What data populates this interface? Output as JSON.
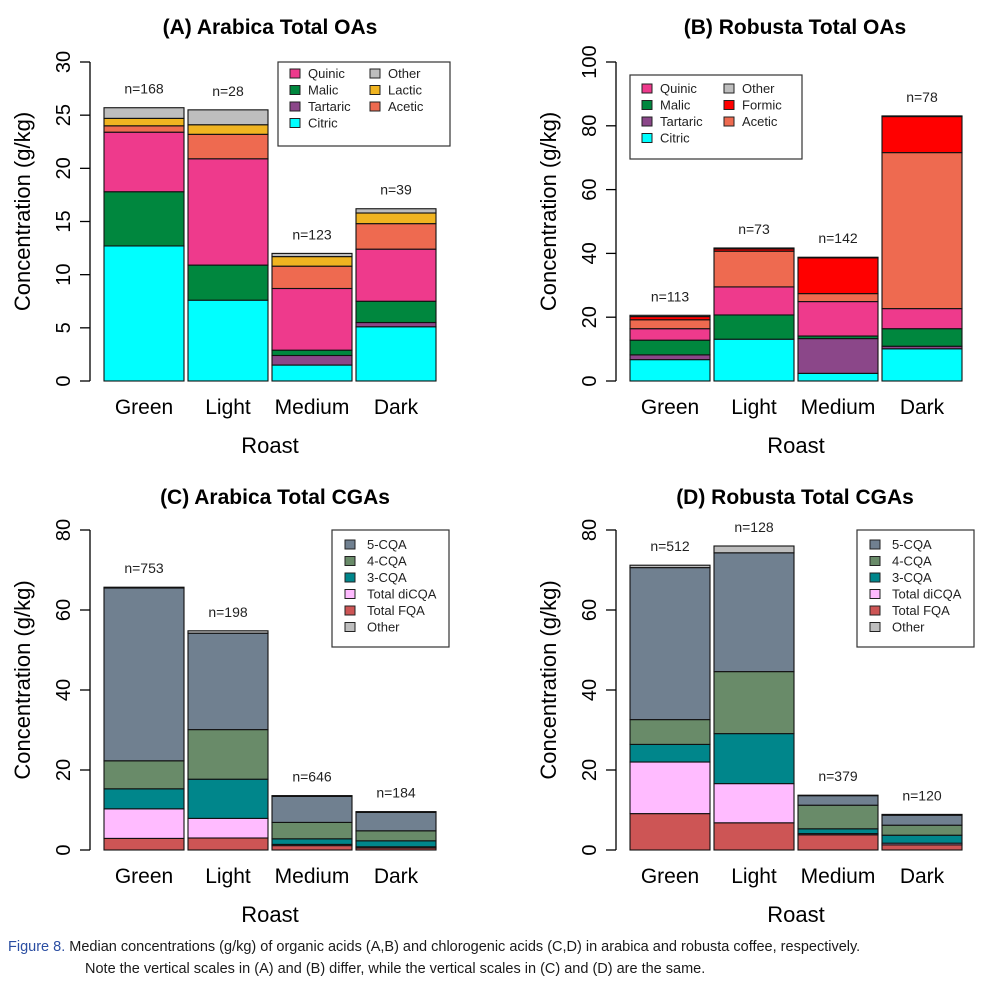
{
  "caption": {
    "label": "Figure 8.",
    "line1": "Median concentrations (g/kg) of organic acids (A,B) and chlorogenic acids (C,D) in arabica and robusta coffee, respectively.",
    "line2": "Note the vertical scales in (A) and (B) differ, while the vertical scales in (C) and (D) are the same."
  },
  "chart_data": [
    {
      "type": "bar",
      "stacked": true,
      "title": "(A) Arabica Total OAs",
      "xlabel": "Roast",
      "ylabel": "Concentration (g/kg)",
      "ylim": [
        0,
        30
      ],
      "yticks": [
        0,
        5,
        10,
        15,
        20,
        25,
        30
      ],
      "categories": [
        "Green",
        "Light",
        "Medium",
        "Dark"
      ],
      "annotations": [
        "n=168",
        "n=28",
        "n=123",
        "n=39"
      ],
      "legend_position": "top-right",
      "legend_columns": [
        [
          "Quinic",
          "Malic",
          "Tartaric",
          "Citric"
        ],
        [
          "Other",
          "Lactic",
          "Acetic"
        ]
      ],
      "series": [
        {
          "name": "Citric",
          "color": "#00FFFF",
          "values": [
            12.7,
            7.6,
            1.5,
            5.1
          ]
        },
        {
          "name": "Tartaric",
          "color": "#8B4789",
          "values": [
            0.0,
            0.0,
            0.9,
            0.4
          ]
        },
        {
          "name": "Malic",
          "color": "#00873E",
          "values": [
            5.1,
            3.3,
            0.5,
            2.0
          ]
        },
        {
          "name": "Quinic",
          "color": "#EE3A8C",
          "values": [
            5.6,
            10.0,
            5.8,
            4.9
          ]
        },
        {
          "name": "Acetic",
          "color": "#EE6A50",
          "values": [
            0.6,
            2.3,
            2.1,
            2.4
          ]
        },
        {
          "name": "Lactic",
          "color": "#F0B421",
          "values": [
            0.7,
            0.9,
            0.9,
            1.0
          ]
        },
        {
          "name": "Other",
          "color": "#BEBEBE",
          "values": [
            1.0,
            1.4,
            0.3,
            0.4
          ]
        }
      ]
    },
    {
      "type": "bar",
      "stacked": true,
      "title": "(B) Robusta Total OAs",
      "xlabel": "Roast",
      "ylabel": "Concentration (g/kg)",
      "ylim": [
        0,
        100
      ],
      "yticks": [
        0,
        20,
        40,
        60,
        80,
        100
      ],
      "categories": [
        "Green",
        "Light",
        "Medium",
        "Dark"
      ],
      "annotations": [
        "n=113",
        "n=73",
        "n=142",
        "n=78"
      ],
      "legend_position": "top-left",
      "legend_columns": [
        [
          "Quinic",
          "Malic",
          "Tartaric",
          "Citric"
        ],
        [
          "Other",
          "Formic",
          "Acetic"
        ]
      ],
      "series": [
        {
          "name": "Citric",
          "color": "#00FFFF",
          "values": [
            6.7,
            13.1,
            2.4,
            10.1
          ]
        },
        {
          "name": "Tartaric",
          "color": "#8B4789",
          "values": [
            1.5,
            0.0,
            10.9,
            0.8
          ]
        },
        {
          "name": "Malic",
          "color": "#00873E",
          "values": [
            4.6,
            7.6,
            0.8,
            5.5
          ]
        },
        {
          "name": "Quinic",
          "color": "#EE3A8C",
          "values": [
            3.6,
            8.8,
            10.8,
            6.3
          ]
        },
        {
          "name": "Acetic",
          "color": "#EE6A50",
          "values": [
            2.8,
            11.2,
            2.5,
            48.9
          ]
        },
        {
          "name": "Formic",
          "color": "#FF0000",
          "values": [
            1.0,
            0.7,
            11.2,
            11.3
          ]
        },
        {
          "name": "Other",
          "color": "#BEBEBE",
          "values": [
            0.4,
            0.3,
            0.2,
            0.2
          ]
        }
      ]
    },
    {
      "type": "bar",
      "stacked": true,
      "title": "(C) Arabica Total CGAs",
      "xlabel": "Roast",
      "ylabel": "Concentration (g/kg)",
      "ylim": [
        0,
        80
      ],
      "yticks": [
        0,
        20,
        40,
        60,
        80
      ],
      "categories": [
        "Green",
        "Light",
        "Medium",
        "Dark"
      ],
      "annotations": [
        "n=753",
        "n=198",
        "n=646",
        "n=184"
      ],
      "legend_position": "top-right",
      "legend_columns": [
        [
          "5-CQA",
          "4-CQA",
          "3-CQA",
          "Total diCQA",
          "Total FQA",
          "Other"
        ]
      ],
      "series": [
        {
          "name": "Total FQA",
          "color": "#CD5555",
          "values": [
            2.9,
            3.0,
            1.1,
            0.5
          ]
        },
        {
          "name": "Total diCQA",
          "color": "#FFBBFF",
          "values": [
            7.4,
            4.9,
            0.3,
            0.3
          ]
        },
        {
          "name": "3-CQA",
          "color": "#00868B",
          "values": [
            5.0,
            9.8,
            1.4,
            1.5
          ]
        },
        {
          "name": "4-CQA",
          "color": "#698B69",
          "values": [
            7.0,
            12.4,
            4.1,
            2.5
          ]
        },
        {
          "name": "5-CQA",
          "color": "#708090",
          "values": [
            43.2,
            24.1,
            6.5,
            4.6
          ]
        },
        {
          "name": "Other",
          "color": "#BEBEBE",
          "values": [
            0.2,
            0.6,
            0.2,
            0.2
          ]
        }
      ]
    },
    {
      "type": "bar",
      "stacked": true,
      "title": "(D) Robusta Total CGAs",
      "xlabel": "Roast",
      "ylabel": "Concentration (g/kg)",
      "ylim": [
        0,
        80
      ],
      "yticks": [
        0,
        20,
        40,
        60,
        80
      ],
      "categories": [
        "Green",
        "Light",
        "Medium",
        "Dark"
      ],
      "annotations": [
        "n=512",
        "n=128",
        "n=379",
        "n=120"
      ],
      "legend_position": "top-right",
      "legend_columns": [
        [
          "5-CQA",
          "4-CQA",
          "3-CQA",
          "Total diCQA",
          "Total FQA",
          "Other"
        ]
      ],
      "series": [
        {
          "name": "Total FQA",
          "color": "#CD5555",
          "values": [
            9.1,
            6.8,
            3.8,
            1.3
          ]
        },
        {
          "name": "Total diCQA",
          "color": "#FFBBFF",
          "values": [
            12.9,
            9.8,
            0.3,
            0.4
          ]
        },
        {
          "name": "3-CQA",
          "color": "#00868B",
          "values": [
            4.4,
            12.5,
            1.2,
            2.0
          ]
        },
        {
          "name": "4-CQA",
          "color": "#698B69",
          "values": [
            6.2,
            15.5,
            5.9,
            2.5
          ]
        },
        {
          "name": "5-CQA",
          "color": "#708090",
          "values": [
            38.0,
            29.7,
            2.4,
            2.5
          ]
        },
        {
          "name": "Other",
          "color": "#BEBEBE",
          "values": [
            0.6,
            1.7,
            0.1,
            0.2
          ]
        }
      ]
    }
  ]
}
